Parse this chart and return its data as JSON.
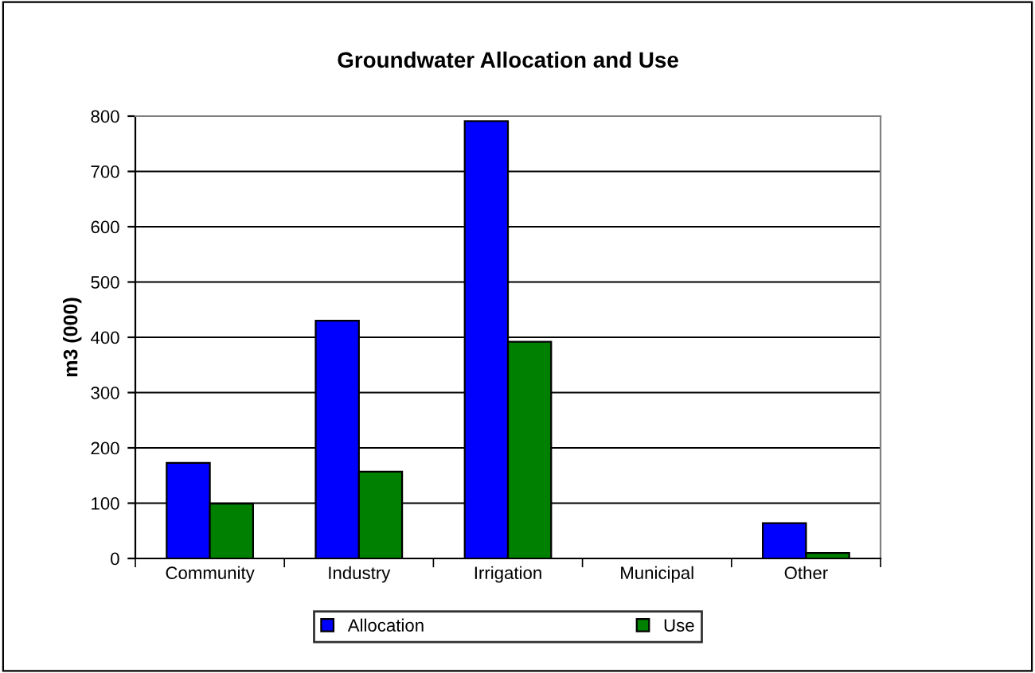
{
  "chart_data": {
    "type": "bar",
    "title": "Groundwater Allocation and Use",
    "ylabel": "m3 (000)",
    "categories": [
      "Community",
      "Industry",
      "Irrigation",
      "Municipal",
      "Other"
    ],
    "series": [
      {
        "name": "Allocation",
        "color": "#0000ff",
        "values": [
          173,
          430,
          791,
          null,
          64
        ]
      },
      {
        "name": "Use",
        "color": "#008000",
        "values": [
          99,
          157,
          392,
          null,
          10
        ]
      }
    ],
    "ylim": [
      0,
      800
    ],
    "yticks": [
      0,
      100,
      200,
      300,
      400,
      500,
      600,
      700,
      800
    ],
    "grid": "y",
    "legend": "bottom"
  }
}
